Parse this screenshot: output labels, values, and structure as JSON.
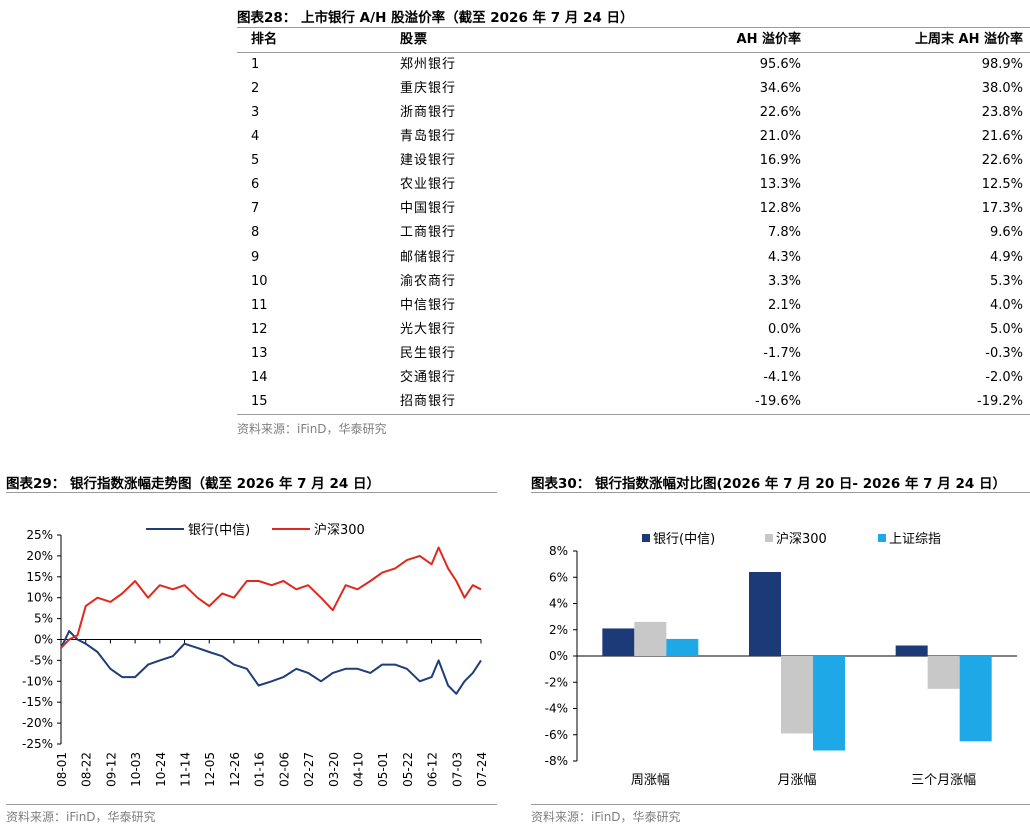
{
  "fig28": {
    "title": "图表28： 上市银行 A/H 股溢价率（截至 2026 年 7 月 24 日）",
    "source": "资料来源：iFinD，华泰研究",
    "chart_data": {
      "type": "table",
      "columns": [
        "排名",
        "股票",
        "AH 溢价率",
        "上周末 AH 溢价率"
      ],
      "rows": [
        [
          "1",
          "郑州银行",
          "95.6%",
          "98.9%"
        ],
        [
          "2",
          "重庆银行",
          "34.6%",
          "38.0%"
        ],
        [
          "3",
          "浙商银行",
          "22.6%",
          "23.8%"
        ],
        [
          "4",
          "青岛银行",
          "21.0%",
          "21.6%"
        ],
        [
          "5",
          "建设银行",
          "16.9%",
          "22.6%"
        ],
        [
          "6",
          "农业银行",
          "13.3%",
          "12.5%"
        ],
        [
          "7",
          "中国银行",
          "12.8%",
          "17.3%"
        ],
        [
          "8",
          "工商银行",
          "7.8%",
          "9.6%"
        ],
        [
          "9",
          "邮储银行",
          "4.3%",
          "4.9%"
        ],
        [
          "10",
          "渝农商行",
          "3.3%",
          "5.3%"
        ],
        [
          "11",
          "中信银行",
          "2.1%",
          "4.0%"
        ],
        [
          "12",
          "光大银行",
          "0.0%",
          "5.0%"
        ],
        [
          "13",
          "民生银行",
          "-1.7%",
          "-0.3%"
        ],
        [
          "14",
          "交通银行",
          "-4.1%",
          "-2.0%"
        ],
        [
          "15",
          "招商银行",
          "-19.6%",
          "-19.2%"
        ]
      ]
    }
  },
  "fig29": {
    "title": "图表29： 银行指数涨幅走势图（截至 2026 年 7 月 24 日）",
    "source": "资料来源：iFinD，华泰研究",
    "chart_data": {
      "type": "line",
      "ylim": [
        -25,
        25
      ],
      "y_ticks": [
        "25%",
        "20%",
        "15%",
        "10%",
        "5%",
        "0%",
        "-5%",
        "-10%",
        "-15%",
        "-20%",
        "-25%"
      ],
      "x_ticks": [
        "08-01",
        "08-22",
        "09-12",
        "10-03",
        "10-24",
        "11-14",
        "12-05",
        "12-26",
        "01-16",
        "02-06",
        "02-27",
        "03-20",
        "04-10",
        "05-01",
        "05-22",
        "06-12",
        "07-03",
        "07-24"
      ],
      "legend_position": "top",
      "series": [
        {
          "name": "银行(中信)",
          "color": "#1f3d7a",
          "x": [
            "08-01",
            "08-08",
            "08-15",
            "08-22",
            "09-01",
            "09-12",
            "09-22",
            "10-03",
            "10-14",
            "10-24",
            "11-04",
            "11-14",
            "11-25",
            "12-05",
            "12-16",
            "12-26",
            "01-06",
            "01-16",
            "01-27",
            "02-06",
            "02-17",
            "02-27",
            "03-10",
            "03-20",
            "03-31",
            "04-10",
            "04-21",
            "05-01",
            "05-12",
            "05-22",
            "06-02",
            "06-12",
            "06-18",
            "06-26",
            "07-03",
            "07-10",
            "07-17",
            "07-24"
          ],
          "values": [
            -2,
            2,
            0,
            -1,
            -3,
            -7,
            -9,
            -9,
            -6,
            -5,
            -4,
            -1,
            -2,
            -3,
            -4,
            -6,
            -7,
            -11,
            -10,
            -9,
            -7,
            -8,
            -10,
            -8,
            -7,
            -7,
            -8,
            -6,
            -6,
            -7,
            -10,
            -9,
            -5,
            -11,
            -13,
            -10,
            -8,
            -5
          ]
        },
        {
          "name": "沪深300",
          "color": "#e0291e",
          "x": [
            "08-01",
            "08-08",
            "08-15",
            "08-22",
            "09-01",
            "09-12",
            "09-22",
            "10-03",
            "10-14",
            "10-24",
            "11-04",
            "11-14",
            "11-25",
            "12-05",
            "12-16",
            "12-26",
            "01-06",
            "01-16",
            "01-27",
            "02-06",
            "02-17",
            "02-27",
            "03-10",
            "03-20",
            "03-31",
            "04-10",
            "04-21",
            "05-01",
            "05-12",
            "05-22",
            "06-02",
            "06-12",
            "06-18",
            "06-26",
            "07-03",
            "07-10",
            "07-17",
            "07-24"
          ],
          "values": [
            -2,
            0,
            1,
            8,
            10,
            9,
            11,
            14,
            10,
            13,
            12,
            13,
            10,
            8,
            11,
            10,
            14,
            14,
            13,
            14,
            12,
            13,
            10,
            7,
            13,
            12,
            14,
            16,
            17,
            19,
            20,
            18,
            22,
            17,
            14,
            10,
            13,
            12
          ]
        }
      ]
    }
  },
  "fig30": {
    "title": "图表30： 银行指数涨幅对比图(2026 年 7 月 20 日- 2026 年 7 月 24 日）",
    "source": "资料来源：iFinD，华泰研究",
    "chart_data": {
      "type": "bar",
      "categories": [
        "周涨幅",
        "月涨幅",
        "三个月涨幅"
      ],
      "ylim": [
        -8,
        8
      ],
      "y_ticks": [
        "8%",
        "6%",
        "4%",
        "2%",
        "0%",
        "-2%",
        "-4%",
        "-6%",
        "-8%"
      ],
      "legend_position": "top",
      "series": [
        {
          "name": "银行(中信)",
          "color": "#1c3a78",
          "values": [
            2.1,
            6.4,
            0.8
          ]
        },
        {
          "name": "沪深300",
          "color": "#c8c8c8",
          "values": [
            2.6,
            -5.9,
            -2.5
          ]
        },
        {
          "name": "上证综指",
          "color": "#1ea8e8",
          "values": [
            1.3,
            -7.2,
            -6.5
          ]
        }
      ]
    }
  }
}
